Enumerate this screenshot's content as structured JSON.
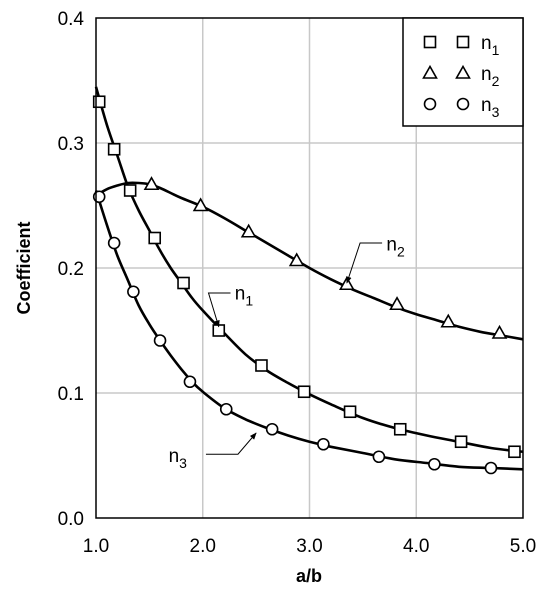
{
  "chart_data": {
    "type": "scatter",
    "title": "",
    "xlabel": "a/b",
    "ylabel": "Coefficient",
    "xlim": [
      1.0,
      5.0
    ],
    "ylim": [
      0.0,
      0.4
    ],
    "x_tick_labels": [
      "1.0",
      "2.0",
      "3.0",
      "4.0",
      "5.0"
    ],
    "y_tick_labels": [
      "0.0",
      "0.1",
      "0.2",
      "0.3",
      "0.4"
    ],
    "grid": true,
    "legend_position": "top-right",
    "series": [
      {
        "name": "n1",
        "label_base": "n",
        "label_sub": "1",
        "marker": "square",
        "points": [
          [
            1.03,
            0.333
          ],
          [
            1.17,
            0.295
          ],
          [
            1.32,
            0.262
          ],
          [
            1.55,
            0.224
          ],
          [
            1.82,
            0.188
          ],
          [
            2.15,
            0.15
          ],
          [
            2.55,
            0.122
          ],
          [
            2.95,
            0.101
          ],
          [
            3.38,
            0.085
          ],
          [
            3.85,
            0.071
          ],
          [
            4.42,
            0.061
          ],
          [
            4.92,
            0.053
          ]
        ],
        "curve": [
          [
            1.0,
            0.345
          ],
          [
            1.1,
            0.315
          ],
          [
            1.2,
            0.29
          ],
          [
            1.3,
            0.265
          ],
          [
            1.4,
            0.246
          ],
          [
            1.5,
            0.23
          ],
          [
            1.6,
            0.214
          ],
          [
            1.7,
            0.2
          ],
          [
            1.8,
            0.188
          ],
          [
            1.9,
            0.176
          ],
          [
            2.0,
            0.166
          ],
          [
            2.2,
            0.148
          ],
          [
            2.4,
            0.131
          ],
          [
            2.6,
            0.118
          ],
          [
            2.8,
            0.108
          ],
          [
            3.0,
            0.099
          ],
          [
            3.2,
            0.091
          ],
          [
            3.5,
            0.08
          ],
          [
            3.8,
            0.072
          ],
          [
            4.1,
            0.066
          ],
          [
            4.4,
            0.061
          ],
          [
            4.7,
            0.056
          ],
          [
            5.0,
            0.053
          ]
        ]
      },
      {
        "name": "n2",
        "label_base": "n",
        "label_sub": "2",
        "marker": "triangle",
        "points": [
          [
            1.52,
            0.267
          ],
          [
            1.98,
            0.25
          ],
          [
            2.43,
            0.229
          ],
          [
            2.88,
            0.206
          ],
          [
            3.35,
            0.187
          ],
          [
            3.82,
            0.171
          ],
          [
            4.3,
            0.157
          ],
          [
            4.78,
            0.148
          ]
        ],
        "curve": [
          [
            1.0,
            0.258
          ],
          [
            1.1,
            0.263
          ],
          [
            1.2,
            0.266
          ],
          [
            1.3,
            0.268
          ],
          [
            1.4,
            0.268
          ],
          [
            1.5,
            0.267
          ],
          [
            1.6,
            0.264
          ],
          [
            1.7,
            0.26
          ],
          [
            1.8,
            0.256
          ],
          [
            2.0,
            0.249
          ],
          [
            2.2,
            0.24
          ],
          [
            2.4,
            0.23
          ],
          [
            2.6,
            0.22
          ],
          [
            2.8,
            0.21
          ],
          [
            3.0,
            0.2
          ],
          [
            3.2,
            0.191
          ],
          [
            3.4,
            0.183
          ],
          [
            3.6,
            0.176
          ],
          [
            3.8,
            0.169
          ],
          [
            4.0,
            0.163
          ],
          [
            4.2,
            0.158
          ],
          [
            4.4,
            0.153
          ],
          [
            4.6,
            0.149
          ],
          [
            4.8,
            0.146
          ],
          [
            5.0,
            0.143
          ]
        ]
      },
      {
        "name": "n3",
        "label_base": "n",
        "label_sub": "3",
        "marker": "circle",
        "points": [
          [
            1.03,
            0.257
          ],
          [
            1.17,
            0.22
          ],
          [
            1.35,
            0.181
          ],
          [
            1.6,
            0.142
          ],
          [
            1.88,
            0.109
          ],
          [
            2.22,
            0.087
          ],
          [
            2.65,
            0.071
          ],
          [
            3.13,
            0.059
          ],
          [
            3.65,
            0.049
          ],
          [
            4.17,
            0.043
          ],
          [
            4.7,
            0.04
          ]
        ],
        "curve": [
          [
            1.0,
            0.262
          ],
          [
            1.1,
            0.235
          ],
          [
            1.2,
            0.21
          ],
          [
            1.3,
            0.19
          ],
          [
            1.4,
            0.17
          ],
          [
            1.5,
            0.155
          ],
          [
            1.6,
            0.142
          ],
          [
            1.7,
            0.13
          ],
          [
            1.8,
            0.119
          ],
          [
            1.9,
            0.109
          ],
          [
            2.0,
            0.101
          ],
          [
            2.2,
            0.088
          ],
          [
            2.4,
            0.079
          ],
          [
            2.6,
            0.072
          ],
          [
            2.8,
            0.066
          ],
          [
            3.0,
            0.061
          ],
          [
            3.2,
            0.057
          ],
          [
            3.5,
            0.052
          ],
          [
            3.8,
            0.047
          ],
          [
            4.1,
            0.044
          ],
          [
            4.4,
            0.041
          ],
          [
            4.7,
            0.04
          ],
          [
            5.0,
            0.039
          ]
        ]
      }
    ],
    "annotations": [
      {
        "series": "n1",
        "label_base": "n",
        "label_sub": "1",
        "text_at": [
          2.3,
          0.175
        ],
        "arrow_to": [
          2.15,
          0.153
        ],
        "elbow_at": [
          2.26,
          0.18
        ]
      },
      {
        "series": "n2",
        "label_base": "n",
        "label_sub": "2",
        "text_at": [
          3.72,
          0.214
        ],
        "arrow_to": [
          3.35,
          0.188
        ],
        "elbow_at": [
          3.68,
          0.22
        ]
      },
      {
        "series": "n3",
        "label_base": "n",
        "label_sub": "3",
        "text_at": [
          1.68,
          0.045
        ],
        "arrow_to": [
          2.5,
          0.068
        ],
        "elbow_at": [
          2.03,
          0.051
        ]
      }
    ]
  }
}
